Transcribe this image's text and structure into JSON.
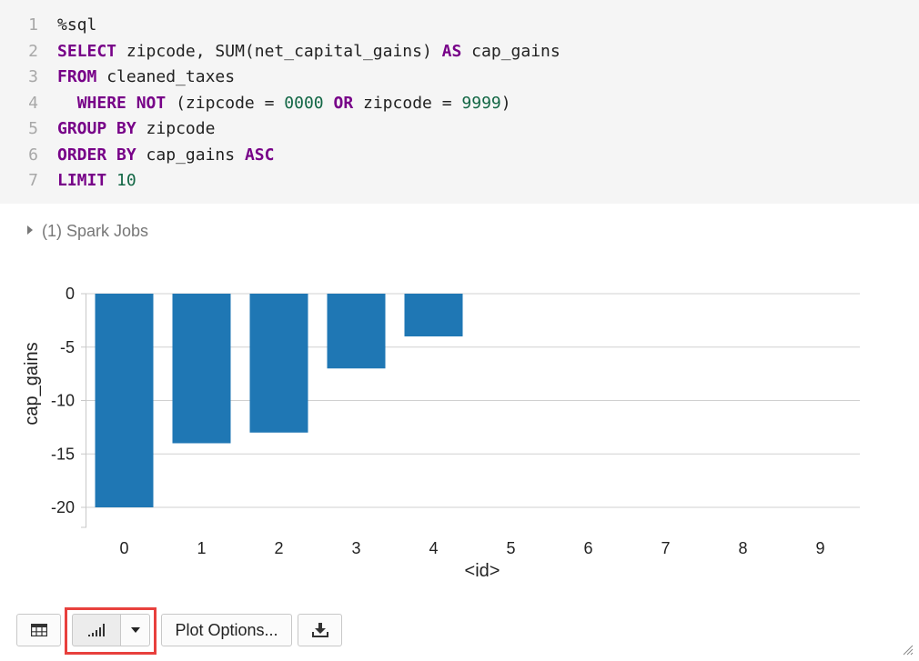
{
  "code": {
    "lines": [
      {
        "n": "1",
        "tokens": [
          {
            "t": "%sql",
            "c": ""
          }
        ]
      },
      {
        "n": "2",
        "tokens": [
          {
            "t": "SELECT",
            "c": "kw"
          },
          {
            "t": " zipcode, SUM(net_capital_gains) ",
            "c": ""
          },
          {
            "t": "AS",
            "c": "kw"
          },
          {
            "t": " cap_gains",
            "c": ""
          }
        ]
      },
      {
        "n": "3",
        "tokens": [
          {
            "t": "FROM",
            "c": "kw"
          },
          {
            "t": " cleaned_taxes",
            "c": ""
          }
        ]
      },
      {
        "n": "4",
        "tokens": [
          {
            "t": "  ",
            "c": ""
          },
          {
            "t": "WHERE",
            "c": "kw"
          },
          {
            "t": " ",
            "c": ""
          },
          {
            "t": "NOT",
            "c": "kw"
          },
          {
            "t": " (zipcode = ",
            "c": ""
          },
          {
            "t": "0000",
            "c": "num"
          },
          {
            "t": " ",
            "c": ""
          },
          {
            "t": "OR",
            "c": "kw"
          },
          {
            "t": " zipcode = ",
            "c": ""
          },
          {
            "t": "9999",
            "c": "num"
          },
          {
            "t": ")",
            "c": ""
          }
        ]
      },
      {
        "n": "5",
        "tokens": [
          {
            "t": "GROUP",
            "c": "kw"
          },
          {
            "t": " ",
            "c": ""
          },
          {
            "t": "BY",
            "c": "kw"
          },
          {
            "t": " zipcode",
            "c": ""
          }
        ]
      },
      {
        "n": "6",
        "tokens": [
          {
            "t": "ORDER",
            "c": "kw"
          },
          {
            "t": " ",
            "c": ""
          },
          {
            "t": "BY",
            "c": "kw"
          },
          {
            "t": " cap_gains ",
            "c": ""
          },
          {
            "t": "ASC",
            "c": "kw"
          }
        ]
      },
      {
        "n": "7",
        "tokens": [
          {
            "t": "LIMIT",
            "c": "kw"
          },
          {
            "t": " ",
            "c": ""
          },
          {
            "t": "10",
            "c": "num"
          }
        ]
      }
    ]
  },
  "spark_jobs": {
    "label": "(1) Spark Jobs"
  },
  "toolbar": {
    "plot_options_label": "Plot Options..."
  },
  "colors": {
    "bar": "#1f77b4",
    "highlight": "#e8403d",
    "keyword": "#770088",
    "number": "#116644"
  },
  "icons": [
    "table-icon",
    "bar-chart-icon",
    "caret-down-icon",
    "download-icon",
    "resize-grip-icon",
    "expand-triangle-icon"
  ],
  "chart_data": {
    "type": "bar",
    "categories": [
      "0",
      "1",
      "2",
      "3",
      "4",
      "5",
      "6",
      "7",
      "8",
      "9"
    ],
    "values": [
      -20,
      -14,
      -13,
      -7,
      -4,
      null,
      null,
      null,
      null,
      null
    ],
    "xlabel": "<id>",
    "ylabel": "cap_gains",
    "ylim": [
      -20,
      0
    ],
    "yticks": [
      0,
      -5,
      -10,
      -15,
      -20
    ],
    "grid": true
  }
}
